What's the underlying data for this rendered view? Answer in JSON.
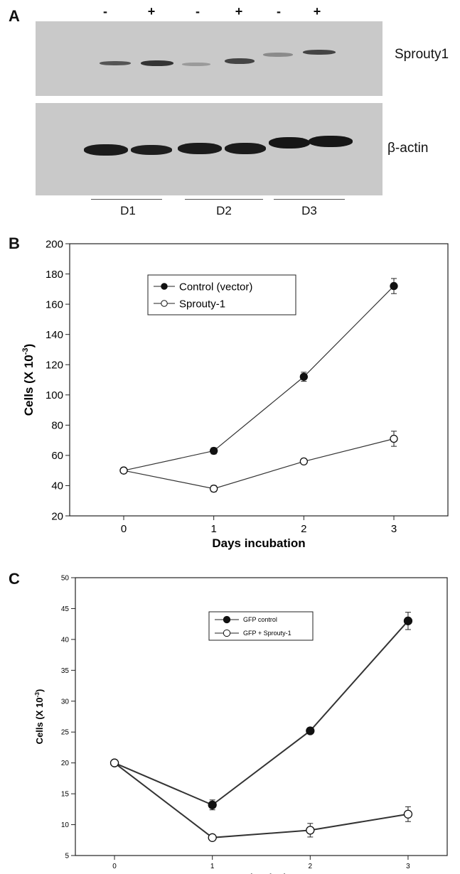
{
  "panelA": {
    "letter": "A",
    "signs": [
      "-",
      "+",
      "-",
      "+",
      "-",
      "+"
    ],
    "protein_top": "Sprouty1",
    "protein_bottom": "β-actin",
    "days": [
      "D1",
      "D2",
      "D3"
    ]
  },
  "chart_data": [
    {
      "panel": "B",
      "type": "line",
      "x": [
        0,
        1,
        2,
        3
      ],
      "xlabel": "Days incubation",
      "ylabel": "Cells (X 10-3)",
      "ylabel_main": "Cells (X 10",
      "ylabel_exp": "-3",
      "ylabel_close": ")",
      "xlim": [
        -0.6,
        3.6
      ],
      "ylim": [
        20,
        200
      ],
      "yticks": [
        20,
        40,
        60,
        80,
        100,
        120,
        140,
        160,
        180,
        200
      ],
      "xticks": [
        0,
        1,
        2,
        3
      ],
      "legend_position": "top-left",
      "grid": false,
      "series": [
        {
          "name": "Control (vector)",
          "marker": "filled",
          "values": [
            50,
            63,
            112,
            172
          ],
          "errors": [
            1,
            2,
            3,
            5
          ]
        },
        {
          "name": "Sprouty-1",
          "marker": "open",
          "values": [
            50,
            38,
            56,
            71
          ],
          "errors": [
            1,
            2,
            1,
            5
          ]
        }
      ]
    },
    {
      "panel": "C",
      "type": "line",
      "x": [
        0,
        1,
        2,
        3
      ],
      "xlabel": "Days incubation",
      "ylabel": "Cells (X 10-3)",
      "ylabel_main": "Cells (X 10",
      "ylabel_exp": "-3",
      "ylabel_close": ")",
      "xlim": [
        -0.4,
        3.4
      ],
      "ylim": [
        5,
        50
      ],
      "yticks": [
        5,
        10,
        15,
        20,
        25,
        30,
        35,
        40,
        45,
        50
      ],
      "xticks": [
        0,
        1,
        2,
        3
      ],
      "legend_position": "top-right",
      "grid": false,
      "series": [
        {
          "name": "GFP control",
          "marker": "filled",
          "values": [
            20,
            13.2,
            25.2,
            43
          ],
          "errors": [
            0.3,
            0.8,
            0.5,
            1.4
          ]
        },
        {
          "name": "GFP + Sprouty-1",
          "marker": "open",
          "values": [
            20,
            7.9,
            9.1,
            11.7
          ],
          "errors": [
            0.3,
            0.3,
            1.1,
            1.2
          ]
        }
      ]
    }
  ]
}
